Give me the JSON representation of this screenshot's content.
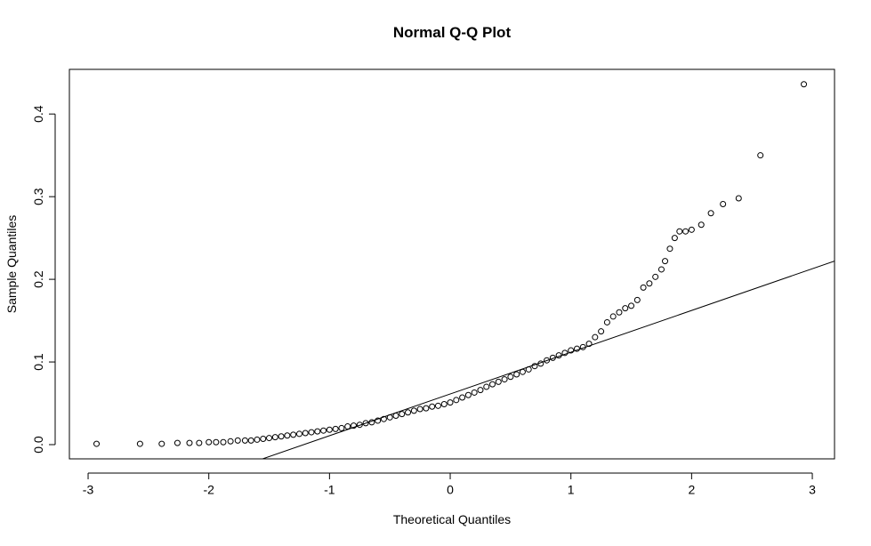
{
  "chart_data": {
    "type": "scatter",
    "title": "Normal Q-Q Plot",
    "x_label": "Theoretical Quantiles",
    "y_label": "Sample Quantiles",
    "xlim": [
      -3.155,
      3.184
    ],
    "ylim": [
      -0.0172,
      0.454
    ],
    "xticks": [
      -3,
      -2,
      -1,
      0,
      1,
      2,
      3
    ],
    "yticks": [
      {
        "value": 0,
        "label": "0.0"
      },
      0.1,
      0.2,
      0.3,
      0.4
    ],
    "color": "#000000",
    "qqline": {
      "intercept": 0.0613,
      "slope": 0.0505
    },
    "x": [
      -2.93,
      -2.57,
      -2.39,
      -2.26,
      -2.16,
      -2.08,
      -2.0,
      -1.94,
      -1.88,
      -1.82,
      -1.76,
      -1.7,
      -1.65,
      -1.6,
      -1.55,
      -1.5,
      -1.45,
      -1.4,
      -1.35,
      -1.3,
      -1.25,
      -1.2,
      -1.15,
      -1.1,
      -1.05,
      -1.0,
      -0.95,
      -0.9,
      -0.85,
      -0.8,
      -0.75,
      -0.7,
      -0.65,
      -0.6,
      -0.55,
      -0.5,
      -0.45,
      -0.4,
      -0.35,
      -0.3,
      -0.25,
      -0.2,
      -0.15,
      -0.1,
      -0.05,
      0.0,
      0.05,
      0.1,
      0.15,
      0.2,
      0.25,
      0.3,
      0.35,
      0.4,
      0.45,
      0.5,
      0.55,
      0.6,
      0.65,
      0.7,
      0.75,
      0.8,
      0.85,
      0.9,
      0.95,
      1.0,
      1.05,
      1.1,
      1.15,
      1.2,
      1.25,
      1.3,
      1.35,
      1.4,
      1.45,
      1.5,
      1.55,
      1.6,
      1.65,
      1.7,
      1.75,
      1.78,
      1.82,
      1.86,
      1.9,
      1.95,
      2.0,
      2.08,
      2.16,
      2.26,
      2.39,
      2.57,
      2.93
    ],
    "values": [
      0.001,
      0.001,
      0.001,
      0.002,
      0.002,
      0.002,
      0.003,
      0.003,
      0.003,
      0.004,
      0.005,
      0.005,
      0.005,
      0.006,
      0.007,
      0.008,
      0.009,
      0.01,
      0.011,
      0.012,
      0.013,
      0.014,
      0.015,
      0.016,
      0.017,
      0.018,
      0.019,
      0.02,
      0.022,
      0.023,
      0.024,
      0.026,
      0.027,
      0.029,
      0.031,
      0.033,
      0.035,
      0.037,
      0.039,
      0.041,
      0.043,
      0.044,
      0.046,
      0.047,
      0.049,
      0.051,
      0.054,
      0.057,
      0.06,
      0.063,
      0.066,
      0.07,
      0.073,
      0.076,
      0.079,
      0.082,
      0.085,
      0.088,
      0.091,
      0.095,
      0.098,
      0.102,
      0.105,
      0.108,
      0.111,
      0.114,
      0.116,
      0.118,
      0.122,
      0.13,
      0.137,
      0.148,
      0.155,
      0.16,
      0.165,
      0.168,
      0.175,
      0.19,
      0.195,
      0.203,
      0.212,
      0.222,
      0.237,
      0.25,
      0.258,
      0.258,
      0.26,
      0.266,
      0.28,
      0.291,
      0.298,
      0.35,
      0.436
    ]
  }
}
